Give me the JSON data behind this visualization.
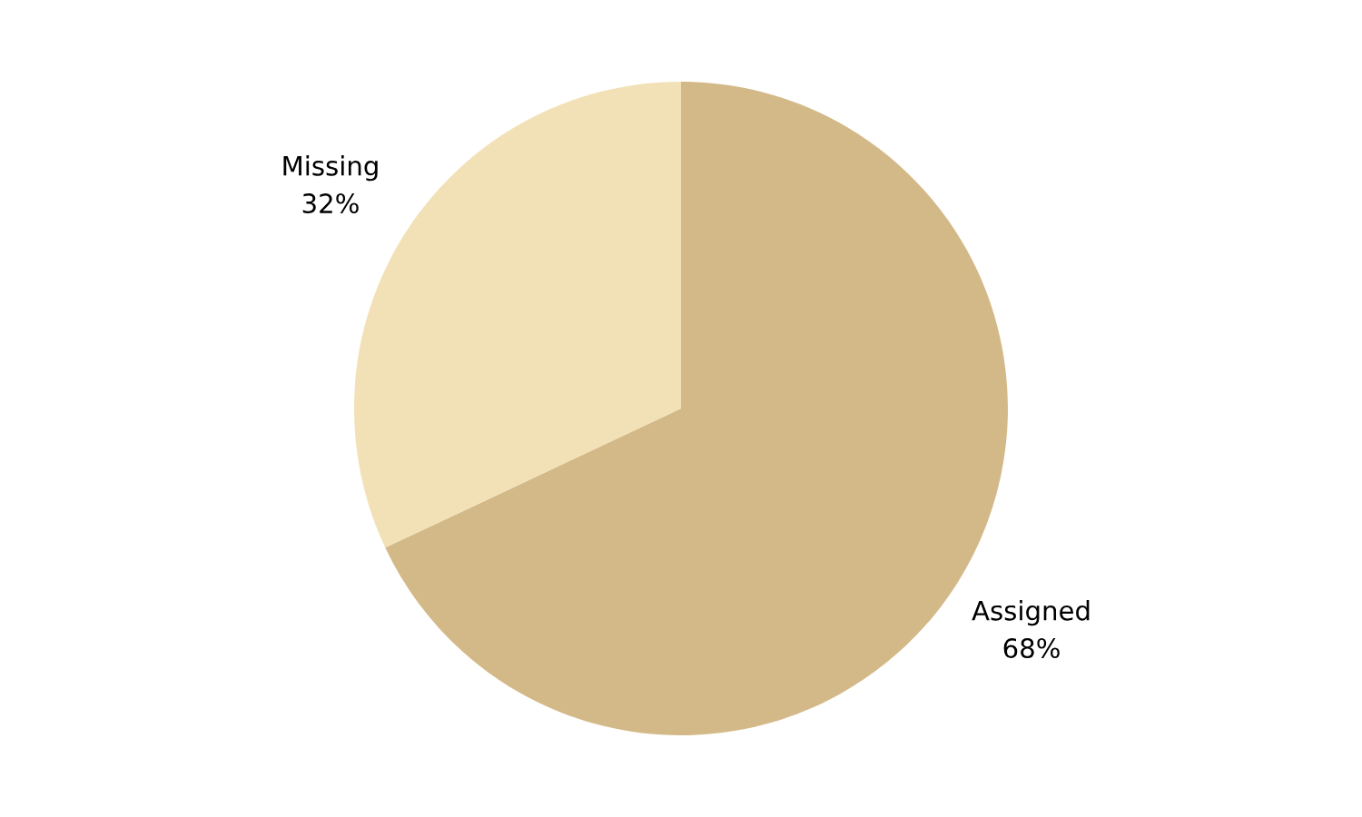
{
  "chart_data": {
    "type": "pie",
    "categories": [
      "Assigned",
      "Missing"
    ],
    "values": [
      68,
      32
    ],
    "colors": [
      "#d4b988",
      "#f2e1b6"
    ],
    "value_labels": [
      "68%",
      "32%"
    ]
  }
}
